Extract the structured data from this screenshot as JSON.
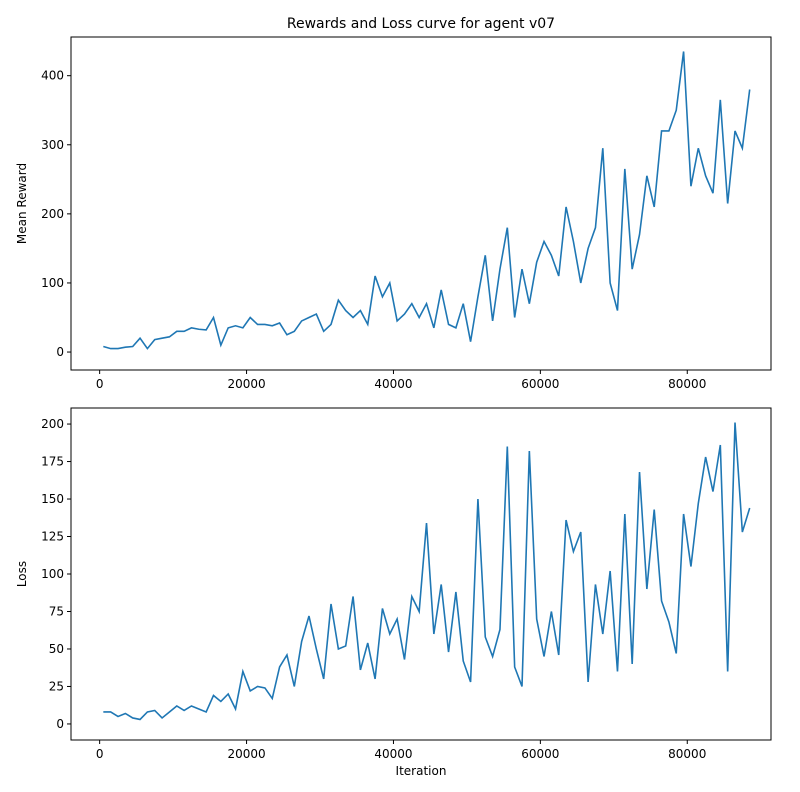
{
  "chart_data": [
    {
      "type": "line",
      "title": "Rewards and Loss curve for agent v07",
      "ylabel": "Mean Reward",
      "x": [
        500,
        1500,
        2500,
        3500,
        4500,
        5500,
        6500,
        7500,
        8500,
        9500,
        10500,
        11500,
        12500,
        13500,
        14500,
        15500,
        16500,
        17500,
        18500,
        19500,
        20500,
        21500,
        22500,
        23500,
        24500,
        25500,
        26500,
        27500,
        28500,
        29500,
        30500,
        31500,
        32500,
        33500,
        34500,
        35500,
        36500,
        37500,
        38500,
        39500,
        40500,
        41500,
        42500,
        43500,
        44500,
        45500,
        46500,
        47500,
        48500,
        49500,
        50500,
        51500,
        52500,
        53500,
        54500,
        55500,
        56500,
        57500,
        58500,
        59500,
        60500,
        61500,
        62500,
        63500,
        64500,
        65500,
        66500,
        67500,
        68500,
        69500,
        70500,
        71500,
        72500,
        73500,
        74500,
        75500,
        76500,
        77500,
        78500,
        79500,
        80500,
        81500,
        82500,
        83500,
        84500,
        85500,
        86500,
        87500,
        88500
      ],
      "series": [
        {
          "color": "#1f77b4",
          "values": [
            8,
            5,
            5,
            7,
            8,
            20,
            5,
            18,
            20,
            22,
            30,
            30,
            35,
            33,
            32,
            50,
            10,
            35,
            38,
            35,
            50,
            40,
            40,
            38,
            42,
            25,
            30,
            45,
            50,
            55,
            30,
            40,
            75,
            60,
            50,
            60,
            40,
            110,
            80,
            100,
            45,
            55,
            70,
            50,
            70,
            35,
            90,
            40,
            35,
            70,
            15,
            80,
            140,
            45,
            120,
            180,
            50,
            120,
            70,
            130,
            160,
            140,
            110,
            210,
            160,
            100,
            150,
            180,
            295,
            100,
            60,
            265,
            120,
            170,
            255,
            210,
            320,
            320,
            350,
            435,
            240,
            295,
            255,
            230,
            365,
            215,
            320,
            295,
            380
          ]
        }
      ],
      "xlim": [
        -3900,
        91400
      ],
      "ylim": [
        -26,
        456
      ],
      "xticks": [
        0,
        20000,
        40000,
        60000,
        80000
      ],
      "yticks": [
        0,
        100,
        200,
        300,
        400
      ]
    },
    {
      "type": "line",
      "ylabel": "Loss",
      "xlabel": "Iteration",
      "x": [
        500,
        1500,
        2500,
        3500,
        4500,
        5500,
        6500,
        7500,
        8500,
        9500,
        10500,
        11500,
        12500,
        13500,
        14500,
        15500,
        16500,
        17500,
        18500,
        19500,
        20500,
        21500,
        22500,
        23500,
        24500,
        25500,
        26500,
        27500,
        28500,
        29500,
        30500,
        31500,
        32500,
        33500,
        34500,
        35500,
        36500,
        37500,
        38500,
        39500,
        40500,
        41500,
        42500,
        43500,
        44500,
        45500,
        46500,
        47500,
        48500,
        49500,
        50500,
        51500,
        52500,
        53500,
        54500,
        55500,
        56500,
        57500,
        58500,
        59500,
        60500,
        61500,
        62500,
        63500,
        64500,
        65500,
        66500,
        67500,
        68500,
        69500,
        70500,
        71500,
        72500,
        73500,
        74500,
        75500,
        76500,
        77500,
        78500,
        79500,
        80500,
        81500,
        82500,
        83500,
        84500,
        85500,
        86500,
        87500,
        88500
      ],
      "series": [
        {
          "color": "#1f77b4",
          "values": [
            8,
            8,
            5,
            7,
            4,
            3,
            8,
            9,
            4,
            8,
            12,
            9,
            12,
            10,
            8,
            19,
            15,
            20,
            10,
            35,
            22,
            25,
            24,
            17,
            38,
            46,
            25,
            55,
            72,
            50,
            30,
            80,
            50,
            52,
            85,
            36,
            54,
            30,
            77,
            60,
            70,
            43,
            85,
            75,
            134,
            60,
            93,
            48,
            88,
            42,
            28,
            150,
            58,
            45,
            63,
            185,
            38,
            25,
            182,
            70,
            45,
            75,
            46,
            136,
            115,
            128,
            28,
            93,
            60,
            102,
            35,
            140,
            40,
            168,
            90,
            143,
            82,
            68,
            47,
            140,
            105,
            147,
            178,
            155,
            186,
            35,
            201,
            128,
            144
          ]
        }
      ],
      "xlim": [
        -3900,
        91400
      ],
      "ylim": [
        -10.7,
        210.7
      ],
      "xticks": [
        0,
        20000,
        40000,
        60000,
        80000
      ],
      "yticks": [
        0,
        25,
        50,
        75,
        100,
        125,
        150,
        175,
        200
      ]
    }
  ]
}
